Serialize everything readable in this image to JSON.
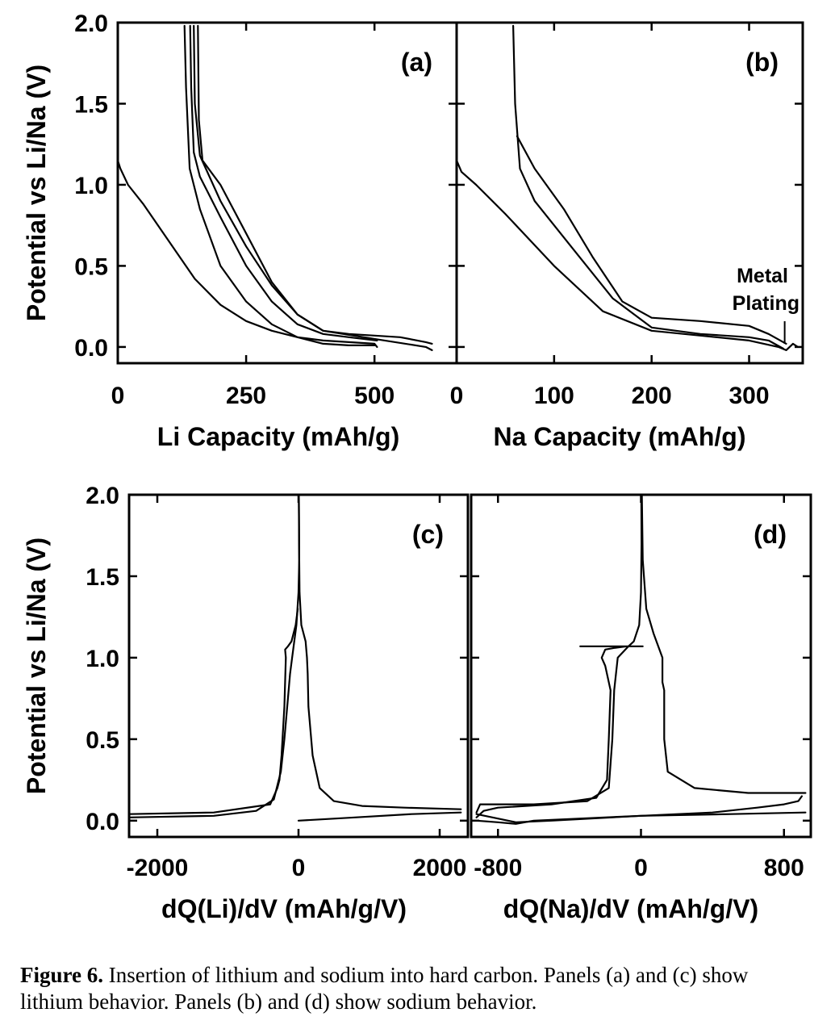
{
  "figure": {
    "caption_label": "Figure 6.",
    "caption_text": "Insertion of lithium and sodium into hard carbon. Panels (a) and (c) show lithium behavior. Panels (b) and (d) show sodium behavior."
  },
  "chart_data": [
    {
      "id": "a",
      "type": "line",
      "panel_label": "(a)",
      "xlabel": "Li Capacity (mAh/g)",
      "ylabel": "Potential vs Li/Na (V)",
      "xlim": [
        0,
        660
      ],
      "ylim": [
        -0.1,
        2.0
      ],
      "xticks": [
        0,
        250,
        500
      ],
      "yticks": [
        0.0,
        0.5,
        1.0,
        1.5,
        2.0
      ],
      "series": [
        {
          "values": [
            [
              0,
              1.15
            ],
            [
              5,
              1.1
            ],
            [
              20,
              1.0
            ],
            [
              50,
              0.88
            ],
            [
              100,
              0.65
            ],
            [
              150,
              0.42
            ],
            [
              200,
              0.26
            ],
            [
              250,
              0.16
            ],
            [
              300,
              0.1
            ],
            [
              350,
              0.06
            ],
            [
              400,
              0.04
            ],
            [
              450,
              0.03
            ],
            [
              500,
              0.02
            ],
            [
              505,
              0.0
            ]
          ]
        },
        {
          "values": [
            [
              130,
              1.98
            ],
            [
              133,
              1.6
            ],
            [
              140,
              1.1
            ],
            [
              160,
              0.85
            ],
            [
              200,
              0.5
            ],
            [
              250,
              0.28
            ],
            [
              300,
              0.14
            ],
            [
              350,
              0.06
            ],
            [
              400,
              0.02
            ],
            [
              450,
              0.01
            ],
            [
              500,
              0.01
            ]
          ]
        },
        {
          "values": [
            [
              505,
              0.04
            ],
            [
              450,
              0.06
            ],
            [
              400,
              0.08
            ],
            [
              350,
              0.14
            ],
            [
              300,
              0.28
            ],
            [
              250,
              0.5
            ],
            [
              200,
              0.8
            ],
            [
              160,
              1.05
            ],
            [
              148,
              1.2
            ],
            [
              143,
              1.6
            ],
            [
              141,
              1.98
            ]
          ]
        },
        {
          "values": [
            [
              148,
              1.98
            ],
            [
              150,
              1.5
            ],
            [
              160,
              1.18
            ],
            [
              200,
              0.9
            ],
            [
              250,
              0.62
            ],
            [
              300,
              0.38
            ],
            [
              350,
              0.2
            ],
            [
              400,
              0.1
            ],
            [
              500,
              0.05
            ],
            [
              600,
              0.0
            ],
            [
              612,
              -0.02
            ]
          ]
        },
        {
          "values": [
            [
              612,
              0.02
            ],
            [
              600,
              0.03
            ],
            [
              550,
              0.06
            ],
            [
              500,
              0.07
            ],
            [
              450,
              0.08
            ],
            [
              400,
              0.1
            ],
            [
              350,
              0.2
            ],
            [
              300,
              0.4
            ],
            [
              250,
              0.7
            ],
            [
              200,
              1.0
            ],
            [
              165,
              1.15
            ],
            [
              158,
              1.4
            ],
            [
              156,
              1.98
            ]
          ]
        }
      ]
    },
    {
      "id": "b",
      "type": "line",
      "panel_label": "(b)",
      "xlabel": "Na Capacity (mAh/g)",
      "ylabel": "",
      "xlim": [
        0,
        355
      ],
      "ylim": [
        -0.1,
        2.0
      ],
      "xticks": [
        0,
        100,
        200,
        300
      ],
      "yticks": [
        0.0,
        0.5,
        1.0,
        1.5,
        2.0
      ],
      "annotation": "Metal Plating",
      "annotation_point": {
        "x": 334,
        "y": 0.02
      },
      "series": [
        {
          "values": [
            [
              0,
              1.15
            ],
            [
              5,
              1.08
            ],
            [
              20,
              1.0
            ],
            [
              50,
              0.82
            ],
            [
              100,
              0.5
            ],
            [
              150,
              0.22
            ],
            [
              200,
              0.1
            ],
            [
              250,
              0.07
            ],
            [
              300,
              0.04
            ],
            [
              330,
              0.0
            ],
            [
              338,
              -0.02
            ],
            [
              345,
              0.02
            ],
            [
              350,
              0.0
            ]
          ]
        },
        {
          "values": [
            [
              58,
              1.98
            ],
            [
              60,
              1.5
            ],
            [
              65,
              1.1
            ],
            [
              80,
              0.9
            ],
            [
              120,
              0.6
            ],
            [
              160,
              0.3
            ],
            [
              200,
              0.12
            ],
            [
              250,
              0.08
            ],
            [
              300,
              0.06
            ],
            [
              320,
              0.04
            ],
            [
              335,
              -0.01
            ]
          ]
        },
        {
          "values": [
            [
              338,
              0.02
            ],
            [
              320,
              0.08
            ],
            [
              300,
              0.13
            ],
            [
              250,
              0.16
            ],
            [
              200,
              0.18
            ],
            [
              170,
              0.28
            ],
            [
              140,
              0.55
            ],
            [
              110,
              0.85
            ],
            [
              80,
              1.1
            ],
            [
              62,
              1.3
            ]
          ]
        }
      ]
    },
    {
      "id": "c",
      "type": "line",
      "panel_label": "(c)",
      "xlabel": "dQ(Li)/dV (mAh/g/V)",
      "ylabel": "Potential vs Li/Na (V)",
      "xlim": [
        -2400,
        2400
      ],
      "ylim": [
        -0.1,
        2.0
      ],
      "xticks": [
        -2000,
        0,
        2000
      ],
      "yticks": [
        0.0,
        0.5,
        1.0,
        1.5,
        2.0
      ],
      "series": [
        {
          "values": [
            [
              -2400,
              0.02
            ],
            [
              -1200,
              0.03
            ],
            [
              -600,
              0.06
            ],
            [
              -350,
              0.13
            ],
            [
              -250,
              0.3
            ],
            [
              -200,
              0.5
            ],
            [
              -150,
              0.75
            ],
            [
              -120,
              0.9
            ],
            [
              -90,
              1.0
            ],
            [
              -30,
              1.2
            ],
            [
              0,
              1.4
            ],
            [
              10,
              1.6
            ],
            [
              8,
              1.8
            ],
            [
              5,
              2.0
            ]
          ]
        },
        {
          "values": [
            [
              -2400,
              0.04
            ],
            [
              -1200,
              0.05
            ],
            [
              -400,
              0.1
            ],
            [
              -300,
              0.2
            ],
            [
              -270,
              0.25
            ],
            [
              -240,
              0.4
            ],
            [
              -200,
              0.7
            ],
            [
              -180,
              1.0
            ],
            [
              -190,
              1.05
            ],
            [
              -150,
              1.07
            ],
            [
              -100,
              1.1
            ],
            [
              -40,
              1.2
            ],
            [
              -10,
              1.3
            ]
          ]
        },
        {
          "values": [
            [
              2300,
              0.07
            ],
            [
              1500,
              0.08
            ],
            [
              900,
              0.09
            ],
            [
              500,
              0.12
            ],
            [
              300,
              0.2
            ],
            [
              200,
              0.4
            ],
            [
              140,
              0.7
            ],
            [
              130,
              0.9
            ],
            [
              120,
              1.0
            ],
            [
              100,
              1.1
            ],
            [
              40,
              1.2
            ],
            [
              15,
              1.4
            ],
            [
              8,
              1.7
            ],
            [
              5,
              2.0
            ]
          ]
        },
        {
          "values": [
            [
              0,
              0.0
            ],
            [
              800,
              0.02
            ],
            [
              1600,
              0.04
            ],
            [
              2300,
              0.05
            ]
          ]
        }
      ]
    },
    {
      "id": "d",
      "type": "line",
      "panel_label": "(d)",
      "xlabel": "dQ(Na)/dV (mAh/g/V)",
      "ylabel": "",
      "xlim": [
        -950,
        950
      ],
      "ylim": [
        -0.1,
        2.0
      ],
      "xticks": [
        -800,
        0,
        800
      ],
      "yticks": [
        0.0,
        0.5,
        1.0,
        1.5,
        2.0
      ],
      "series": [
        {
          "values": [
            [
              -920,
              0.05
            ],
            [
              -900,
              0.1
            ],
            [
              -600,
              0.1
            ],
            [
              -300,
              0.12
            ],
            [
              -180,
              0.2
            ],
            [
              -160,
              0.5
            ],
            [
              -150,
              0.8
            ],
            [
              -130,
              1.0
            ],
            [
              -70,
              1.07
            ],
            [
              -40,
              1.1
            ],
            [
              -10,
              1.2
            ],
            [
              0,
              1.4
            ],
            [
              3,
              1.7
            ],
            [
              2,
              2.0
            ]
          ]
        },
        {
          "values": [
            [
              -920,
              0.02
            ],
            [
              -880,
              0.06
            ],
            [
              -800,
              0.08
            ],
            [
              -500,
              0.1
            ],
            [
              -250,
              0.14
            ],
            [
              -190,
              0.25
            ],
            [
              -180,
              0.5
            ],
            [
              -170,
              0.8
            ],
            [
              -200,
              0.95
            ],
            [
              -220,
              1.0
            ],
            [
              -200,
              1.05
            ],
            [
              -150,
              1.06
            ],
            [
              -80,
              1.07
            ],
            [
              -340,
              1.07
            ],
            [
              -50,
              1.07
            ],
            [
              10,
              1.07
            ]
          ]
        },
        {
          "values": [
            [
              920,
              0.17
            ],
            [
              600,
              0.17
            ],
            [
              300,
              0.2
            ],
            [
              150,
              0.3
            ],
            [
              130,
              0.5
            ],
            [
              130,
              0.8
            ],
            [
              120,
              0.85
            ],
            [
              120,
              1.0
            ],
            [
              70,
              1.15
            ],
            [
              30,
              1.3
            ],
            [
              10,
              1.6
            ],
            [
              5,
              2.0
            ]
          ]
        },
        {
          "values": [
            [
              -920,
              0.0
            ],
            [
              -800,
              -0.01
            ],
            [
              -700,
              -0.02
            ],
            [
              -600,
              0.0
            ],
            [
              -400,
              0.01
            ],
            [
              0,
              0.03
            ],
            [
              400,
              0.05
            ],
            [
              650,
              0.08
            ],
            [
              800,
              0.1
            ],
            [
              880,
              0.12
            ],
            [
              900,
              0.15
            ]
          ]
        },
        {
          "values": [
            [
              -920,
              0.04
            ],
            [
              -700,
              -0.01
            ],
            [
              -500,
              0.0
            ],
            [
              0,
              0.03
            ],
            [
              500,
              0.04
            ],
            [
              920,
              0.05
            ]
          ]
        }
      ]
    }
  ]
}
